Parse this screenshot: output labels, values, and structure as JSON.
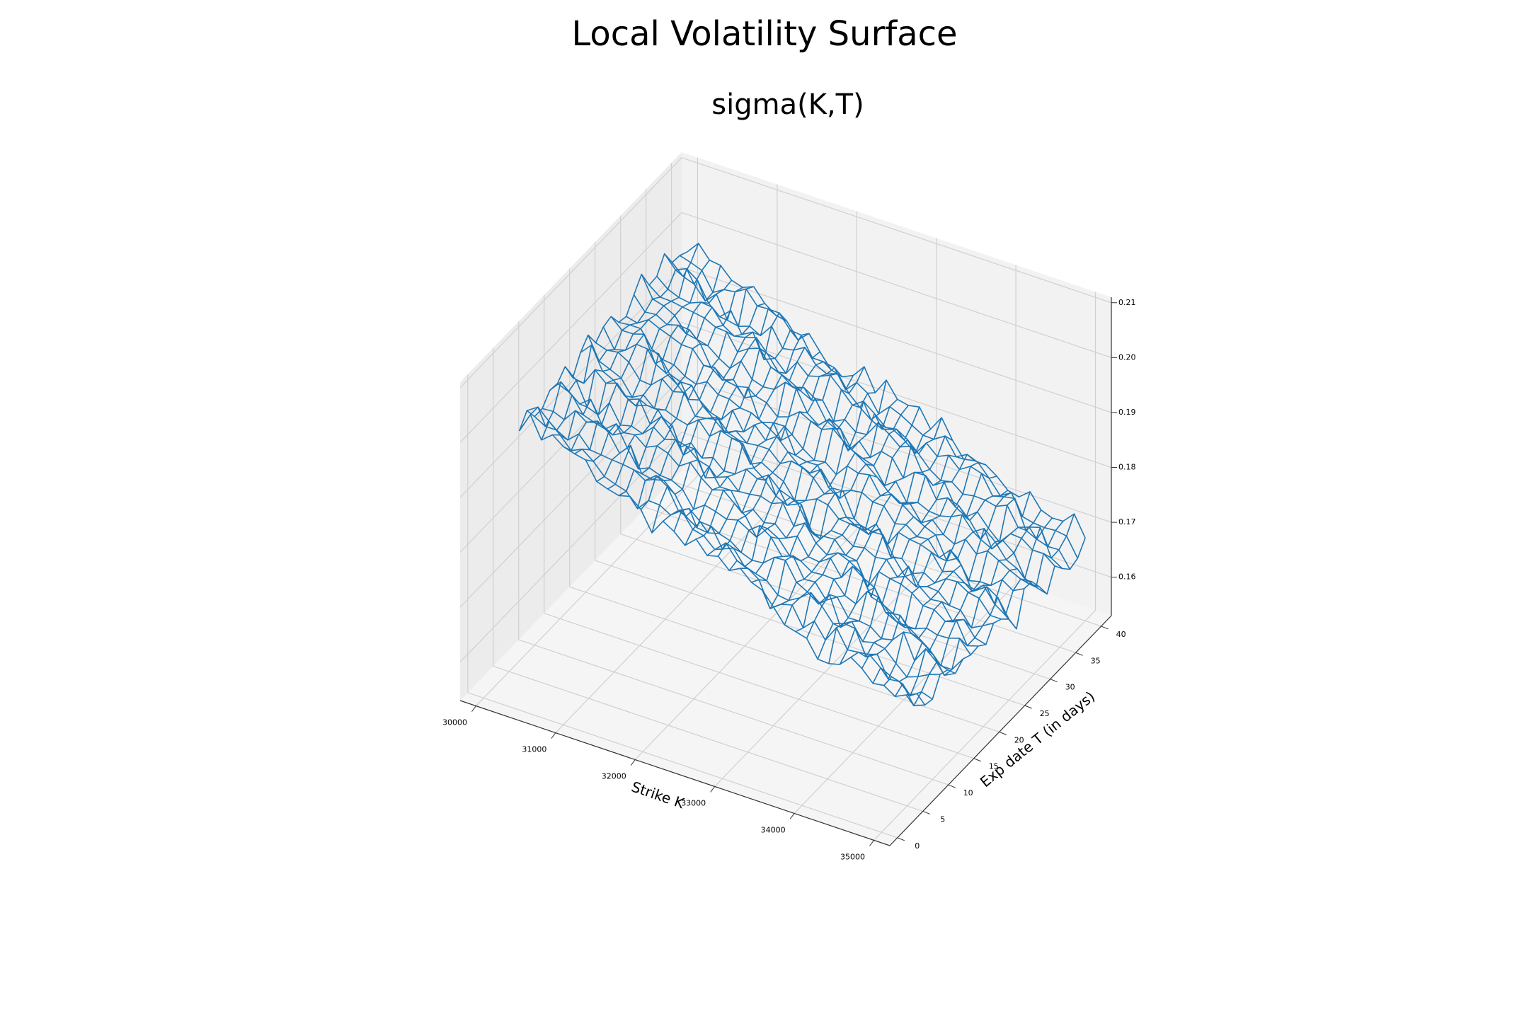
{
  "title": "Local Volatility Surface",
  "subtitle": "sigma(K,T)",
  "chart_data": {
    "type": "wireframe-3d",
    "title": "Local Volatility Surface",
    "subtitle": "sigma(K,T)",
    "xlabel": "Strike K",
    "ylabel": "Exp date T (in days)",
    "zlabel": "",
    "xlim": [
      29800,
      35200
    ],
    "ylim": [
      -1.5,
      42
    ],
    "zlim": [
      0.153,
      0.211
    ],
    "xticks": [
      30000,
      31000,
      32000,
      33000,
      34000,
      35000
    ],
    "yticks": [
      0,
      5,
      10,
      15,
      20,
      25,
      30,
      35,
      40
    ],
    "zticks": [
      "0.16",
      "0.17",
      "0.18",
      "0.19",
      "0.20",
      "0.21"
    ],
    "surface": {
      "strike_range": [
        30000,
        35000
      ],
      "expiry_range": [
        7,
        40
      ],
      "sigma_at_low_strike": 0.197,
      "sigma_at_high_strike": 0.168,
      "noise_amplitude": 0.003,
      "color": "#1f77b4"
    },
    "grid": true,
    "pane_colors": [
      "#f2f2f2",
      "#ececec",
      "#f5f5f5"
    ]
  }
}
